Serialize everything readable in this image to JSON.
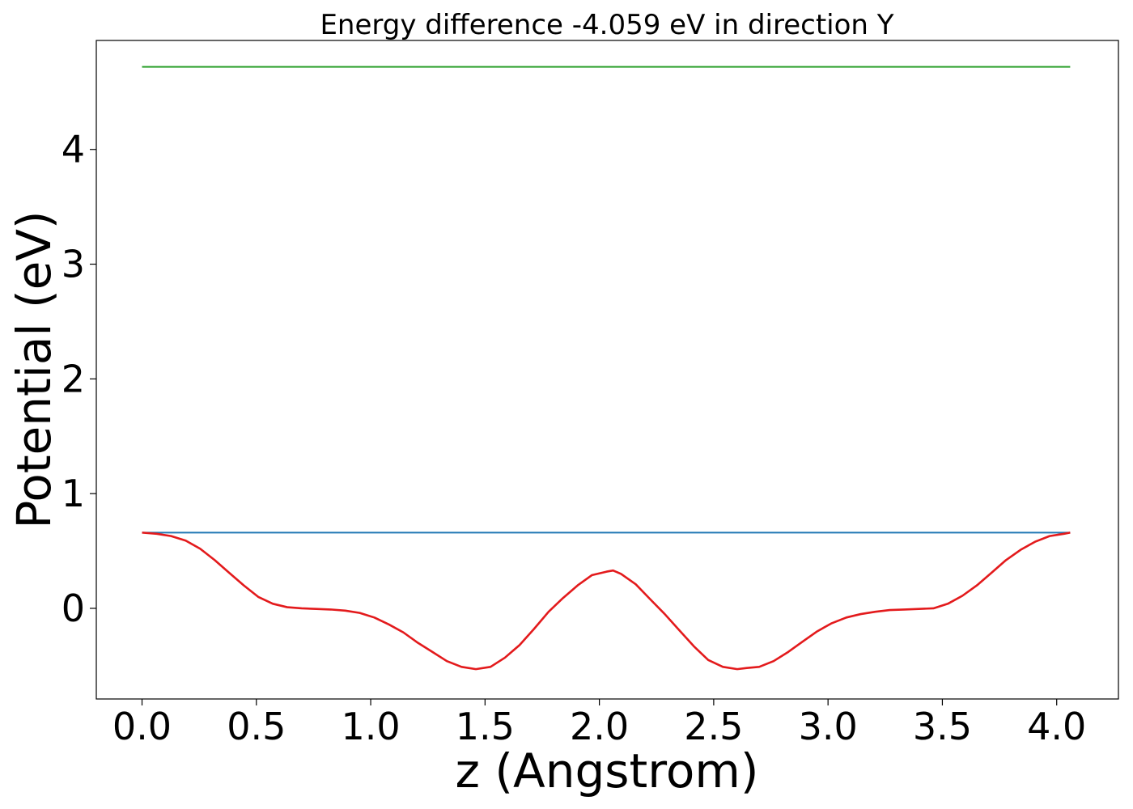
{
  "chart_data": {
    "type": "line",
    "title": "Energy difference -4.059 eV in direction Y",
    "xlabel": "z (Angstrom)",
    "ylabel": "Potential (eV)",
    "xlim": [
      -0.2,
      4.27
    ],
    "ylim": [
      -0.79,
      4.95
    ],
    "xticks": [
      0.0,
      0.5,
      1.0,
      1.5,
      2.0,
      2.5,
      3.0,
      3.5,
      4.0
    ],
    "xtick_labels": [
      "0.0",
      "0.5",
      "1.0",
      "1.5",
      "2.0",
      "2.5",
      "3.0",
      "3.5",
      "4.0"
    ],
    "yticks": [
      0,
      1,
      2,
      3,
      4
    ],
    "ytick_labels": [
      "0",
      "1",
      "2",
      "3",
      "4"
    ],
    "grid": false,
    "legend": "none",
    "series": [
      {
        "color": "#2ca02c",
        "x": [
          0.0,
          4.059
        ],
        "y": [
          4.72,
          4.72
        ]
      },
      {
        "color": "#1f77b4",
        "x": [
          0.0,
          4.059
        ],
        "y": [
          0.66,
          0.66
        ]
      },
      {
        "color": "#e31a1c",
        "x": [
          0.0,
          0.064,
          0.127,
          0.191,
          0.254,
          0.318,
          0.381,
          0.445,
          0.508,
          0.572,
          0.635,
          0.698,
          0.762,
          0.825,
          0.889,
          0.952,
          1.016,
          1.079,
          1.143,
          1.206,
          1.27,
          1.333,
          1.397,
          1.46,
          1.524,
          1.587,
          1.651,
          1.714,
          1.778,
          1.841,
          1.905,
          1.968,
          2.032,
          2.06,
          2.095,
          2.159,
          2.222,
          2.286,
          2.349,
          2.413,
          2.476,
          2.54,
          2.603,
          2.645,
          2.699,
          2.762,
          2.826,
          2.889,
          2.953,
          3.016,
          3.08,
          3.143,
          3.207,
          3.27,
          3.334,
          3.397,
          3.461,
          3.524,
          3.588,
          3.651,
          3.715,
          3.778,
          3.842,
          3.905,
          3.969,
          4.032,
          4.059
        ],
        "y": [
          0.66,
          0.65,
          0.63,
          0.59,
          0.52,
          0.42,
          0.31,
          0.2,
          0.1,
          0.04,
          0.01,
          0.0,
          -0.005,
          -0.01,
          -0.02,
          -0.04,
          -0.08,
          -0.14,
          -0.21,
          -0.3,
          -0.38,
          -0.46,
          -0.51,
          -0.53,
          -0.51,
          -0.43,
          -0.32,
          -0.18,
          -0.03,
          0.09,
          0.2,
          0.29,
          0.32,
          0.33,
          0.3,
          0.21,
          0.08,
          -0.05,
          -0.19,
          -0.33,
          -0.45,
          -0.51,
          -0.53,
          -0.52,
          -0.51,
          -0.46,
          -0.38,
          -0.29,
          -0.2,
          -0.13,
          -0.08,
          -0.05,
          -0.03,
          -0.015,
          -0.01,
          -0.005,
          0.0,
          0.04,
          0.11,
          0.2,
          0.31,
          0.42,
          0.51,
          0.58,
          0.63,
          0.65,
          0.66
        ]
      }
    ]
  }
}
